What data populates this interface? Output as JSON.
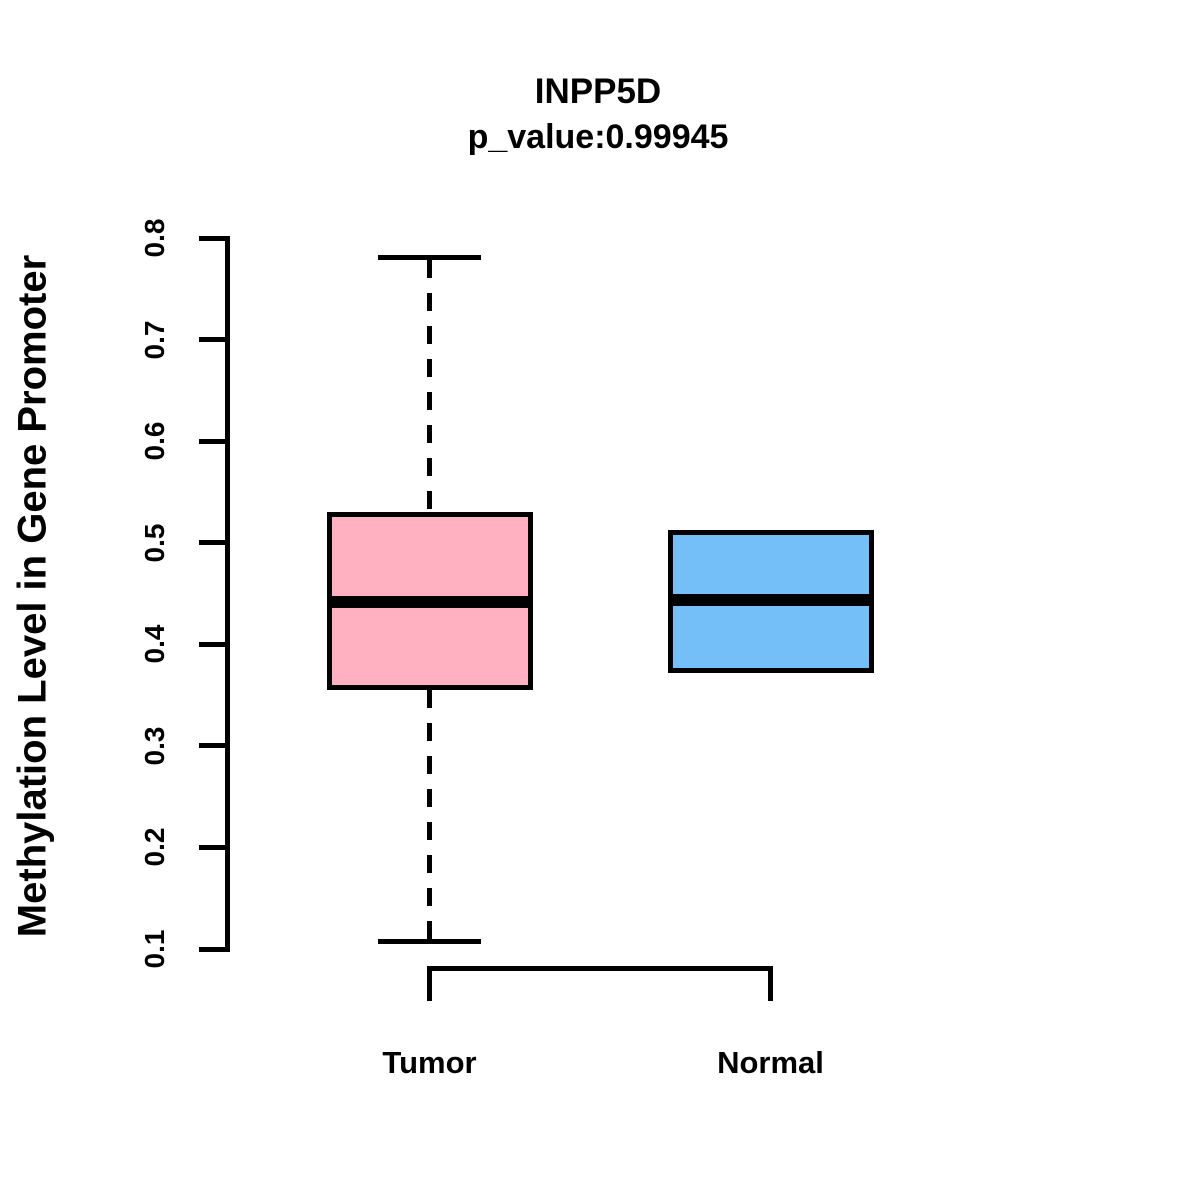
{
  "title": "INPP5D",
  "subtitle": "p_value:0.99945",
  "y_axis": {
    "label": "Methylation Level in Gene Promoter",
    "tick_labels": [
      "0.1",
      "0.2",
      "0.3",
      "0.4",
      "0.5",
      "0.6",
      "0.7",
      "0.8"
    ],
    "min": 0.1,
    "max": 0.8
  },
  "chart_data": {
    "type": "boxplot",
    "title": "INPP5D",
    "subtitle": "p_value:0.99945",
    "ylabel": "Methylation Level in Gene Promoter",
    "ylim": [
      0.1,
      0.8
    ],
    "yticks": [
      0.1,
      0.2,
      0.3,
      0.4,
      0.5,
      0.6,
      0.7,
      0.8
    ],
    "categories": [
      "Tumor",
      "Normal"
    ],
    "series": [
      {
        "name": "Tumor",
        "color": "#FFB0C1",
        "whisker_low": 0.107,
        "q1": 0.355,
        "median": 0.442,
        "q3": 0.53,
        "whisker_high": 0.781,
        "whiskers_visible": true
      },
      {
        "name": "Normal",
        "color": "#74BFF7",
        "whisker_low": 0.372,
        "q1": 0.372,
        "median": 0.444,
        "q3": 0.513,
        "whisker_high": 0.513,
        "whiskers_visible": false
      }
    ],
    "grid": false,
    "legend": "none",
    "border_color": "#000000"
  }
}
